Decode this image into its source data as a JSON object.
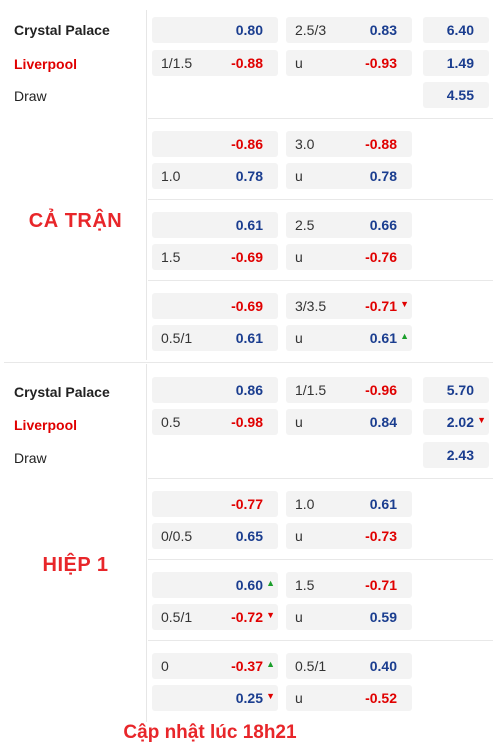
{
  "full_time": {
    "label": "CẢ TRẬN",
    "home": "Crystal Palace",
    "away": "Liverpool",
    "draw": "Draw",
    "x12": {
      "home": "6.40",
      "away": "1.49",
      "draw": "4.55"
    },
    "rows": [
      {
        "hcp": "",
        "hcp_home": "0.80",
        "hcp_line2": "1/1.5",
        "hcp_away": "-0.88",
        "ou_line": "2.5/3",
        "ou_over": "0.83",
        "ou_u": "u",
        "ou_under": "-0.93"
      },
      {
        "hcp": "",
        "hcp_home": "-0.86",
        "hcp_line2": "1.0",
        "hcp_away": "0.78",
        "ou_line": "3.0",
        "ou_over": "-0.88",
        "ou_u": "u",
        "ou_under": "0.78"
      },
      {
        "hcp": "",
        "hcp_home": "0.61",
        "hcp_line2": "1.5",
        "hcp_away": "-0.69",
        "ou_line": "2.5",
        "ou_over": "0.66",
        "ou_u": "u",
        "ou_under": "-0.76"
      },
      {
        "hcp": "",
        "hcp_home": "-0.69",
        "hcp_line2": "0.5/1",
        "hcp_away": "0.61",
        "ou_line": "3/3.5",
        "ou_over": "-0.71",
        "ou_u": "u",
        "ou_under": "0.61"
      }
    ]
  },
  "half_time": {
    "label": "HIỆP 1",
    "home": "Crystal Palace",
    "away": "Liverpool",
    "draw": "Draw",
    "x12": {
      "home": "5.70",
      "away": "2.02",
      "draw": "2.43"
    },
    "rows": [
      {
        "hcp": "",
        "hcp_home": "0.86",
        "hcp_line2": "0.5",
        "hcp_away": "-0.98",
        "ou_line": "1/1.5",
        "ou_over": "-0.96",
        "ou_u": "u",
        "ou_under": "0.84"
      },
      {
        "hcp": "",
        "hcp_home": "-0.77",
        "hcp_line2": "0/0.5",
        "hcp_away": "0.65",
        "ou_line": "1.0",
        "ou_over": "0.61",
        "ou_u": "u",
        "ou_under": "-0.73"
      },
      {
        "hcp": "",
        "hcp_home": "0.60",
        "hcp_line2": "0.5/1",
        "hcp_away": "-0.72",
        "ou_line": "1.5",
        "ou_over": "-0.71",
        "ou_u": "u",
        "ou_under": "0.59"
      },
      {
        "hcp": "0",
        "hcp_home": "-0.37",
        "hcp_line2": "",
        "hcp_away": "0.25",
        "ou_line": "0.5/1",
        "ou_over": "0.40",
        "ou_u": "u",
        "ou_under": "-0.52"
      }
    ]
  },
  "footer": "Cập nhật lúc 18h21",
  "colors": {
    "positive": "#1a3d8f",
    "negative": "#e00000",
    "accent": "#e8262a",
    "up": "#1a9e2a"
  }
}
